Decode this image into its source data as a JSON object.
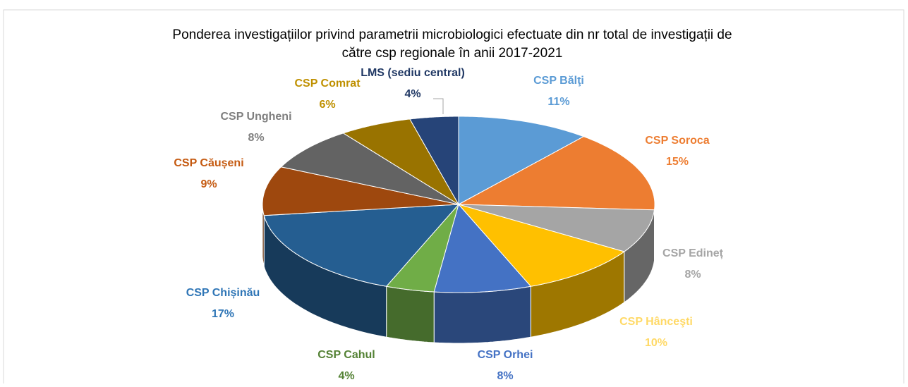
{
  "chart_data": {
    "type": "pie3d",
    "title": [
      "Ponderea investigațiilor privind parametrii microbiologici efectuate din nr total de investigații de",
      "către csp regionale în anii 2017-2021"
    ],
    "categories": [
      "CSP Bălţi",
      "CSP Soroca",
      "CSP Edineț",
      "CSP Hânceşti",
      "CSP Orhei",
      "CSP Cahul",
      "CSP Chișinău",
      "CSP Căușeni",
      "CSP Ungheni",
      "CSP Comrat",
      "LMS (sediu central)"
    ],
    "values": [
      11,
      15,
      8,
      10,
      8,
      4,
      17,
      9,
      8,
      6,
      4
    ],
    "value_labels": [
      "11%",
      "15%",
      "8%",
      "10%",
      "8%",
      "4%",
      "17%",
      "9%",
      "8%",
      "6%",
      "4%"
    ],
    "colors": [
      "#5b9bd5",
      "#ed7d31",
      "#a5a5a5",
      "#ffc000",
      "#4472c4",
      "#70ad47",
      "#255e91",
      "#9e480e",
      "#636363",
      "#997300",
      "#264478"
    ],
    "label_colors": [
      "#5b9bd5",
      "#ed7d31",
      "#a5a5a5",
      "#ffd966",
      "#4472c4",
      "#548235",
      "#2e75b6",
      "#c55a11",
      "#7f7f7f",
      "#bf9000",
      "#203864"
    ]
  }
}
